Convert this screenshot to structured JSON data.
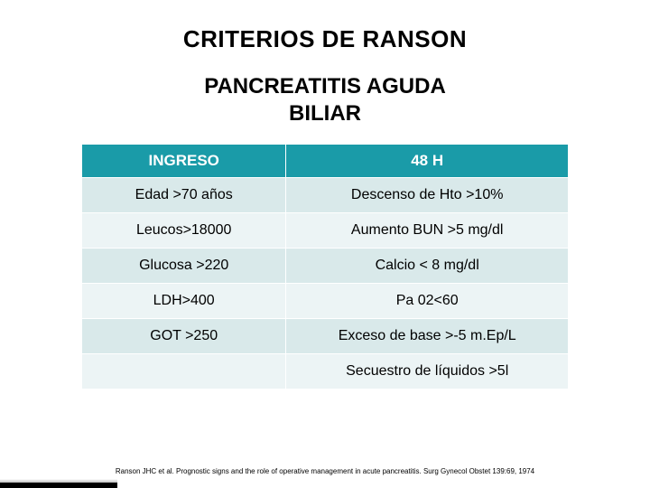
{
  "title": "CRITERIOS DE RANSON",
  "subtitle_line1": "PANCREATITIS AGUDA",
  "subtitle_line2": "BILIAR",
  "table": {
    "header_bg": "#1a9ba8",
    "row_alt1_bg": "#d9e9ea",
    "row_alt2_bg": "#ecf4f5",
    "columns": [
      {
        "label": "INGRESO",
        "key": "left"
      },
      {
        "label": "48 H",
        "key": "right"
      }
    ],
    "rows": [
      {
        "left": "Edad >70 años",
        "right": "Descenso de Hto >10%"
      },
      {
        "left": "Leucos>18000",
        "right": "Aumento BUN >5 mg/dl"
      },
      {
        "left": "Glucosa >220",
        "right": "Calcio < 8 mg/dl"
      },
      {
        "left": "LDH>400",
        "right": "Pa 02<60"
      },
      {
        "left": "GOT >250",
        "right": "Exceso de base >-5 m.Ep/L"
      },
      {
        "left": "",
        "right": "Secuestro de líquidos >5l"
      }
    ]
  },
  "citation": "Ranson JHC et al. Prognostic signs and the role of operative management in acute pancreatitis. Surg Gynecol Obstet 139:69, 1974"
}
